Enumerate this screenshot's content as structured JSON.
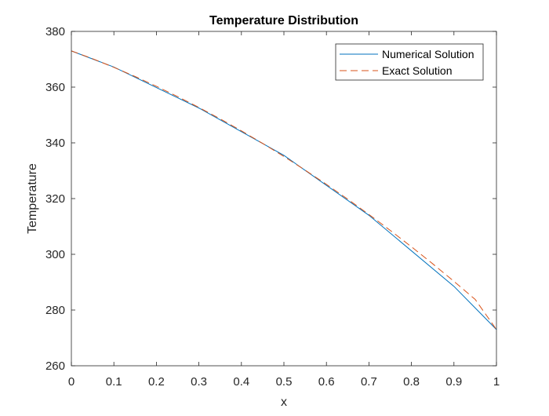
{
  "chart_data": {
    "type": "line",
    "title": "Temperature Distribution",
    "xlabel": "x",
    "ylabel": "Temperature",
    "xlim": [
      0,
      1
    ],
    "ylim": [
      260,
      380
    ],
    "xticks": [
      0,
      0.1,
      0.2,
      0.3,
      0.4,
      0.5,
      0.6,
      0.7,
      0.8,
      0.9,
      1
    ],
    "xtick_labels": [
      "0",
      "0.1",
      "0.2",
      "0.3",
      "0.4",
      "0.5",
      "0.6",
      "0.7",
      "0.8",
      "0.9",
      "1"
    ],
    "yticks": [
      260,
      280,
      300,
      320,
      340,
      360,
      380
    ],
    "ytick_labels": [
      "260",
      "280",
      "300",
      "320",
      "340",
      "360",
      "380"
    ],
    "grid": false,
    "legend_position": "top-right",
    "series": [
      {
        "name": "Numerical Solution",
        "color": "#0072BD",
        "style": "solid",
        "x": [
          0,
          0.1,
          0.3,
          0.5,
          0.7,
          0.9,
          1
        ],
        "y": [
          373,
          367.2,
          352.5,
          335.5,
          314.0,
          288.5,
          273
        ]
      },
      {
        "name": "Exact Solution",
        "color": "#D95319",
        "style": "dashed",
        "x": [
          0,
          0.05,
          0.1,
          0.15,
          0.2,
          0.25,
          0.3,
          0.35,
          0.4,
          0.45,
          0.5,
          0.55,
          0.6,
          0.65,
          0.7,
          0.75,
          0.8,
          0.85,
          0.9,
          0.95,
          1
        ],
        "y": [
          373,
          370.2,
          367.1,
          363.8,
          360.3,
          356.6,
          352.7,
          348.6,
          344.3,
          339.8,
          335.1,
          330.2,
          325.1,
          319.8,
          314.3,
          308.6,
          302.7,
          296.6,
          290.3,
          283.8,
          273
        ]
      }
    ]
  }
}
